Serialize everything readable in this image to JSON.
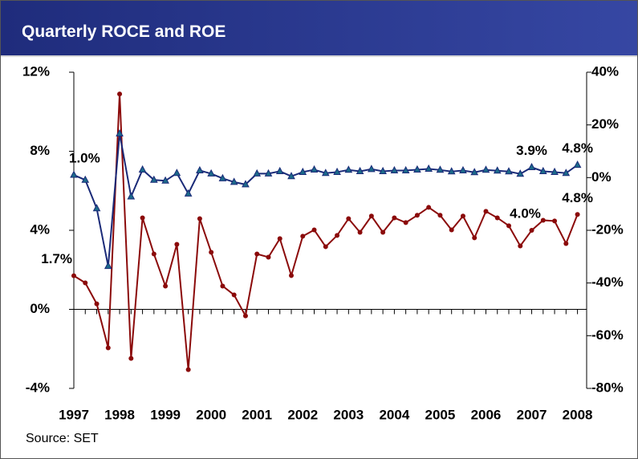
{
  "chart_data": {
    "type": "line",
    "title": "Quarterly ROCE and ROE",
    "source": "Source: SET",
    "x": [
      1997,
      1997.25,
      1997.5,
      1997.75,
      1998,
      1998.25,
      1998.5,
      1998.75,
      1999,
      1999.25,
      1999.5,
      1999.75,
      2000,
      2000.25,
      2000.5,
      2000.75,
      2001,
      2001.25,
      2001.5,
      2001.75,
      2002,
      2002.25,
      2002.5,
      2002.75,
      2003,
      2003.25,
      2003.5,
      2003.75,
      2004,
      2004.25,
      2004.5,
      2004.75,
      2005,
      2005.25,
      2005.5,
      2005.75,
      2006,
      2006.25,
      2006.5,
      2006.75,
      2007,
      2007.25,
      2007.5,
      2007.75,
      2008
    ],
    "xlim": [
      1997,
      2008.2
    ],
    "xticks": [
      1997,
      1998,
      1999,
      2000,
      2001,
      2002,
      2003,
      2004,
      2005,
      2006,
      2007,
      2008
    ],
    "ylim": [
      -4,
      12
    ],
    "yticks": [
      {
        "value": -4,
        "label": "-4%"
      },
      {
        "value": 0,
        "label": "0%"
      },
      {
        "value": 4,
        "label": "4%"
      },
      {
        "value": 8,
        "label": "8%"
      },
      {
        "value": 12,
        "label": "12%"
      }
    ],
    "y2lim": [
      -80,
      40
    ],
    "y2ticks": [
      {
        "value": -80,
        "label": "-80%"
      },
      {
        "value": -60,
        "label": "-60%"
      },
      {
        "value": -40,
        "label": "-40%"
      },
      {
        "value": -20,
        "label": "-20%"
      },
      {
        "value": 0,
        "label": "0%"
      },
      {
        "value": 20,
        "label": "20%"
      },
      {
        "value": 40,
        "label": "40%"
      }
    ],
    "grid": false,
    "series": [
      {
        "color": "#8b0a0a",
        "marker": "circle",
        "values": [
          1.7,
          1.34,
          0.28,
          -1.95,
          10.9,
          -2.48,
          4.63,
          2.8,
          1.18,
          3.29,
          -3.05,
          4.59,
          2.89,
          1.18,
          0.73,
          -0.33,
          2.8,
          2.64,
          3.58,
          1.71,
          3.7,
          4.02,
          3.17,
          3.74,
          4.59,
          3.9,
          4.72,
          3.9,
          4.63,
          4.39,
          4.76,
          5.16,
          4.76,
          4.02,
          4.72,
          3.62,
          4.96,
          4.63,
          4.23,
          3.21,
          4.0,
          4.51,
          4.47,
          3.33,
          4.8
        ],
        "value_labels": [
          "1.7%",
          null,
          null,
          null,
          null,
          null,
          null,
          null,
          null,
          null,
          null,
          null,
          null,
          null,
          null,
          null,
          null,
          null,
          null,
          null,
          null,
          null,
          null,
          null,
          null,
          null,
          null,
          null,
          null,
          null,
          null,
          null,
          null,
          null,
          null,
          null,
          null,
          null,
          null,
          null,
          "4.0%",
          null,
          null,
          null,
          "4.8%"
        ]
      },
      {
        "color": "#1a2a78",
        "marker": "triangle",
        "axis": "y2",
        "values": [
          1.0,
          -0.9,
          -11.7,
          -33.6,
          16.7,
          -7.2,
          3.0,
          -0.9,
          -1.2,
          1.7,
          -6.1,
          2.7,
          1.5,
          -0.3,
          -1.7,
          -2.6,
          1.5,
          1.5,
          2.4,
          0.5,
          2.1,
          3.0,
          1.7,
          2.1,
          2.9,
          2.4,
          3.2,
          2.4,
          2.7,
          2.7,
          3.0,
          3.3,
          2.9,
          2.3,
          2.7,
          2.0,
          2.9,
          2.6,
          2.3,
          1.4,
          3.9,
          2.4,
          2.1,
          1.7,
          4.8
        ],
        "value_labels": [
          "1.0%",
          null,
          null,
          null,
          null,
          null,
          null,
          null,
          null,
          null,
          null,
          null,
          null,
          null,
          null,
          null,
          null,
          null,
          null,
          null,
          null,
          null,
          null,
          null,
          null,
          null,
          null,
          null,
          null,
          null,
          null,
          null,
          null,
          null,
          null,
          null,
          null,
          null,
          null,
          null,
          "3.9%",
          null,
          null,
          null,
          "4.8%"
        ]
      }
    ]
  }
}
